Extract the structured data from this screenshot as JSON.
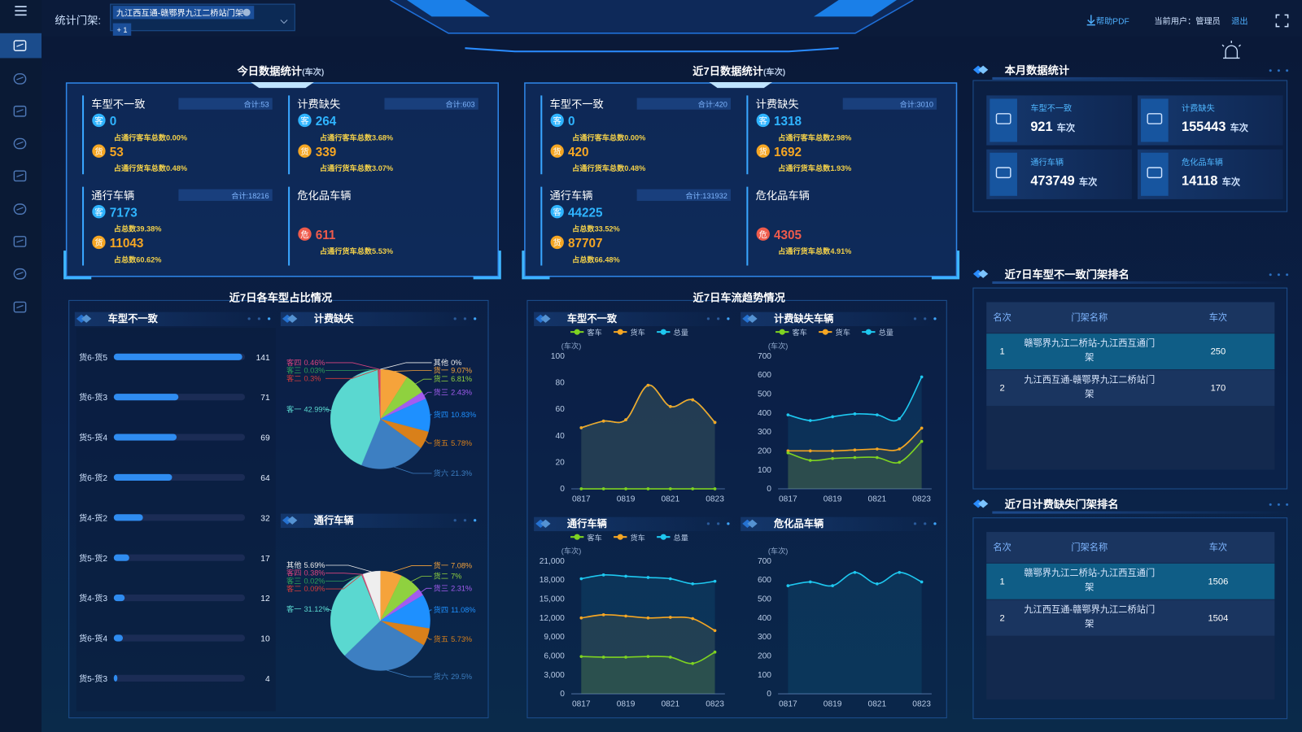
{
  "header": {
    "gantry_label": "统计门架:",
    "selected_gantry": "九江西互通-赣鄂界九江二桥站门架",
    "more_count": "+ 1",
    "help": "帮助PDF",
    "user_label": "当前用户：",
    "user": "管理员",
    "logout": "退出"
  },
  "today": {
    "title": "今日数据统计",
    "unit": "(车次)",
    "blocks": [
      {
        "title": "车型不一致",
        "total_label": "合计:",
        "total": 53,
        "rows": [
          {
            "badge": "客",
            "value": 0,
            "note": "占通行客车总数0.00%",
            "color": "#2fb4ff"
          },
          {
            "badge": "货",
            "value": 53,
            "note": "占通行货车总数0.48%",
            "color": "#f5a623"
          }
        ]
      },
      {
        "title": "计费缺失",
        "total_label": "合计:",
        "total": 603,
        "rows": [
          {
            "badge": "客",
            "value": 264,
            "note": "占通行客车总数3.68%",
            "color": "#2fb4ff"
          },
          {
            "badge": "货",
            "value": 339,
            "note": "占通行货车总数3.07%",
            "color": "#f5a623"
          }
        ]
      },
      {
        "title": "通行车辆",
        "total_label": "合计:",
        "total": 18216,
        "rows": [
          {
            "badge": "客",
            "value": 7173,
            "note": "占总数39.38%",
            "color": "#2fb4ff"
          },
          {
            "badge": "货",
            "value": 11043,
            "note": "占总数60.62%",
            "color": "#f5a623"
          }
        ]
      },
      {
        "title": "危化品车辆",
        "rows": [
          {
            "badge": "危",
            "value": 611,
            "note": "占通行货车总数5.53%",
            "color": "#ef5b4b"
          }
        ]
      }
    ]
  },
  "week": {
    "title": "近7日数据统计",
    "unit": "(车次)",
    "blocks": [
      {
        "title": "车型不一致",
        "total_label": "合计:",
        "total": 420,
        "rows": [
          {
            "badge": "客",
            "value": 0,
            "note": "占通行客车总数0.00%",
            "color": "#2fb4ff"
          },
          {
            "badge": "货",
            "value": 420,
            "note": "占通行货车总数0.48%",
            "color": "#f5a623"
          }
        ]
      },
      {
        "title": "计费缺失",
        "total_label": "合计:",
        "total": 3010,
        "rows": [
          {
            "badge": "客",
            "value": 1318,
            "note": "占通行客车总数2.98%",
            "color": "#2fb4ff"
          },
          {
            "badge": "货",
            "value": 1692,
            "note": "占通行货车总数1.93%",
            "color": "#f5a623"
          }
        ]
      },
      {
        "title": "通行车辆",
        "total_label": "合计:",
        "total": 131932,
        "rows": [
          {
            "badge": "客",
            "value": 44225,
            "note": "占总数33.52%",
            "color": "#2fb4ff"
          },
          {
            "badge": "货",
            "value": 87707,
            "note": "占总数66.48%",
            "color": "#f5a623"
          }
        ]
      },
      {
        "title": "危化品车辆",
        "rows": [
          {
            "badge": "危",
            "value": 4305,
            "note": "占通行货车总数4.91%",
            "color": "#ef5b4b"
          }
        ]
      }
    ]
  },
  "month": {
    "title": "本月数据统计",
    "items": [
      {
        "label": "车型不一致",
        "value": 921,
        "unit": "车次"
      },
      {
        "label": "计费缺失",
        "value": 155443,
        "unit": "车次"
      },
      {
        "label": "通行车辆",
        "value": 473749,
        "unit": "车次"
      },
      {
        "label": "危化品车辆",
        "value": 14118,
        "unit": "车次"
      }
    ]
  },
  "ranking_mismatch": {
    "title": "近7日车型不一致门架排名",
    "columns": [
      "名次",
      "门架名称",
      "车次"
    ],
    "rows": [
      [
        1,
        "赣鄂界九江二桥站-九江西互通门架",
        250
      ],
      [
        2,
        "九江西互通-赣鄂界九江二桥站门架",
        170
      ]
    ]
  },
  "ranking_missing": {
    "title": "近7日计费缺失门架排名",
    "columns": [
      "名次",
      "门架名称",
      "车次"
    ],
    "rows": [
      [
        1,
        "赣鄂界九江二桥站-九江西互通门架",
        1506
      ],
      [
        2,
        "九江西互通-赣鄂界九江二桥站门架",
        1504
      ]
    ]
  },
  "share_section_title": "近7日各车型占比情况",
  "trend_section_title": "近7日车流趋势情况",
  "chart_data": [
    {
      "type": "bar",
      "title": "车型不一致",
      "color": "#2f8cf0",
      "categories": [
        "货6-货5",
        "货6-货3",
        "货5-货4",
        "货6-货2",
        "货4-货2",
        "货5-货2",
        "货4-货3",
        "货6-货4",
        "货5-货3"
      ],
      "values": [
        141,
        71,
        69,
        64,
        32,
        17,
        12,
        10,
        4
      ],
      "xlim": [
        0,
        144
      ]
    },
    {
      "type": "pie",
      "title": "计费缺失",
      "categories": [
        "货一",
        "货二",
        "货三",
        "货四",
        "货五",
        "货六",
        "客一",
        "客二",
        "客三",
        "客四",
        "其他"
      ],
      "values": [
        9.07,
        6.81,
        2.43,
        10.83,
        5.78,
        21.3,
        42.99,
        0.3,
        0.03,
        0.46,
        0
      ],
      "value_labels": [
        "9.07%",
        "6.81%",
        "2.43%",
        "10.83%",
        "5.78%",
        "21.3%",
        "42.99%",
        "0.3%",
        "0.03%",
        "0.46%",
        "0%"
      ],
      "colors": [
        "#f5a33b",
        "#8fd13f",
        "#a35cf0",
        "#1e90ff",
        "#d9801a",
        "#3d7fc2",
        "#5ad8d0",
        "#d23b3b",
        "#2f9e5a",
        "#d9447f",
        "#eeeeee"
      ]
    },
    {
      "type": "pie",
      "title": "通行车辆",
      "categories": [
        "货一",
        "货二",
        "货三",
        "货四",
        "货五",
        "货六",
        "客一",
        "客二",
        "客三",
        "客四",
        "其他"
      ],
      "values": [
        7.08,
        7,
        2.31,
        11.08,
        5.73,
        29.5,
        31.12,
        0.09,
        0.02,
        0.38,
        5.69
      ],
      "value_labels": [
        "7.08%",
        "7%",
        "2.31%",
        "11.08%",
        "5.73%",
        "29.5%",
        "31.12%",
        "0.09%",
        "0.02%",
        "0.38%",
        "5.69%"
      ],
      "colors": [
        "#f5a33b",
        "#8fd13f",
        "#a35cf0",
        "#1e90ff",
        "#d9801a",
        "#3d7fc2",
        "#5ad8d0",
        "#d23b3b",
        "#2f9e5a",
        "#d9447f",
        "#eeeeee"
      ]
    },
    {
      "type": "line",
      "title": "车型不一致",
      "y_unit": "(车次)",
      "categories": [
        "0817",
        null,
        "0819",
        null,
        "0821",
        null,
        "0823"
      ],
      "ylim": [
        0,
        100
      ],
      "yticks": [
        0,
        20,
        40,
        60,
        80,
        100
      ],
      "series": [
        {
          "name": "客车",
          "color": "#7ed321",
          "values": [
            0,
            0,
            0,
            0,
            0,
            0,
            0
          ]
        },
        {
          "name": "货车",
          "color": "#f5a623",
          "values": [
            46,
            51,
            52,
            78,
            62,
            67,
            50
          ]
        },
        {
          "name": "总量",
          "color": "#1ec8f0",
          "values": [
            46,
            51,
            52,
            78,
            62,
            67,
            50
          ]
        }
      ]
    },
    {
      "type": "line",
      "title": "计费缺失车辆",
      "y_unit": "(车次)",
      "categories": [
        "0817",
        null,
        "0819",
        null,
        "0821",
        null,
        "0823"
      ],
      "ylim": [
        0,
        700
      ],
      "yticks": [
        0,
        100,
        200,
        300,
        400,
        500,
        600,
        700
      ],
      "series": [
        {
          "name": "客车",
          "color": "#7ed321",
          "values": [
            190,
            150,
            160,
            165,
            165,
            140,
            250
          ]
        },
        {
          "name": "货车",
          "color": "#f5a623",
          "values": [
            200,
            200,
            200,
            205,
            210,
            210,
            320
          ]
        },
        {
          "name": "总量",
          "color": "#1ec8f0",
          "values": [
            390,
            360,
            380,
            395,
            390,
            370,
            590
          ]
        }
      ]
    },
    {
      "type": "line",
      "title": "通行车辆",
      "y_unit": "(车次)",
      "categories": [
        "0817",
        null,
        "0819",
        null,
        "0821",
        null,
        "0823"
      ],
      "ylim": [
        0,
        21000
      ],
      "yticks": [
        0,
        {
          "value": 3000,
          "label": "3,000"
        },
        {
          "value": 6000,
          "label": "6,000"
        },
        {
          "value": 9000,
          "label": "9,000"
        },
        {
          "value": 12000,
          "label": "12,000"
        },
        {
          "value": 15000,
          "label": "15,000"
        },
        {
          "value": 18000,
          "label": "18,000"
        },
        {
          "value": 21000,
          "label": "21,000"
        }
      ],
      "series": [
        {
          "name": "客车",
          "color": "#7ed321",
          "values": [
            5900,
            5800,
            5800,
            5900,
            5800,
            4800,
            6600
          ]
        },
        {
          "name": "货车",
          "color": "#f5a623",
          "values": [
            12000,
            12500,
            12300,
            12000,
            12100,
            11900,
            10000
          ]
        },
        {
          "name": "总量",
          "color": "#1ec8f0",
          "values": [
            18200,
            18800,
            18600,
            18400,
            18200,
            17400,
            17800
          ]
        }
      ]
    },
    {
      "type": "line",
      "title": "危化品车辆",
      "y_unit": "(车次)",
      "categories": [
        "0817",
        null,
        "0819",
        null,
        "0821",
        null,
        "0823"
      ],
      "ylim": [
        0,
        700
      ],
      "yticks": [
        0,
        100,
        200,
        300,
        400,
        500,
        600,
        700
      ],
      "series": [
        {
          "color": "#1ec8f0",
          "values": [
            570,
            590,
            570,
            640,
            580,
            640,
            590
          ]
        }
      ]
    }
  ]
}
